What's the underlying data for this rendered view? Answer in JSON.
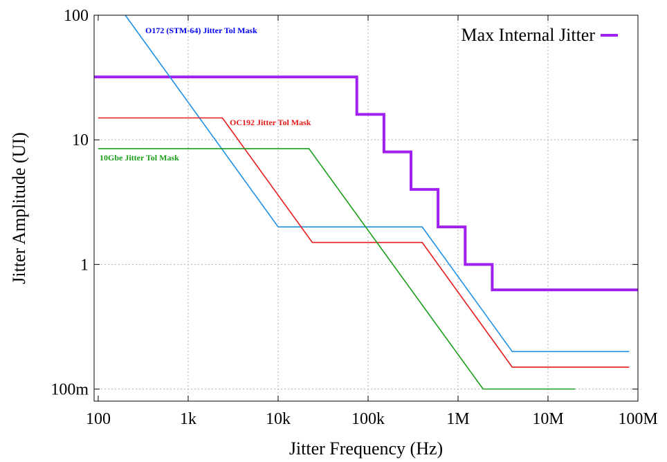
{
  "chart_data": {
    "type": "line",
    "xlabel": "Jitter Frequency (Hz)",
    "ylabel": "Jitter Amplitude (UI)",
    "xscale": "log",
    "yscale": "log",
    "xlim": [
      90,
      100000000
    ],
    "ylim": [
      0.08,
      100
    ],
    "grid": true,
    "legend_position": "top-right",
    "x_ticks": [
      {
        "value": 100,
        "label": "100"
      },
      {
        "value": 1000,
        "label": "1k"
      },
      {
        "value": 10000,
        "label": "10k"
      },
      {
        "value": 100000,
        "label": "100k"
      },
      {
        "value": 1000000,
        "label": "1M"
      },
      {
        "value": 10000000,
        "label": "10M"
      },
      {
        "value": 100000000,
        "label": "100M"
      }
    ],
    "y_ticks": [
      {
        "value": 0.1,
        "label": "100m"
      },
      {
        "value": 1,
        "label": "1"
      },
      {
        "value": 10,
        "label": "10"
      },
      {
        "value": 100,
        "label": "100"
      }
    ],
    "series": [
      {
        "name": "Max Internal Jitter",
        "color": "#a020f0",
        "in_legend": true,
        "x": [
          90,
          75000,
          75000,
          150000,
          150000,
          300000,
          300000,
          600000,
          600000,
          1200000,
          1200000,
          2400000,
          2400000,
          100000000
        ],
        "y": [
          32,
          32,
          16,
          16,
          8,
          8,
          4,
          4,
          2,
          2,
          1,
          1,
          0.625,
          0.625
        ]
      },
      {
        "name": "O172 (STM-64) Jitter Tol Mask",
        "color": "#1e90e6",
        "label_color": "#0000ee",
        "in_legend": false,
        "x": [
          200,
          10000,
          400000,
          4000000,
          80000000
        ],
        "y": [
          100,
          2,
          2,
          0.2,
          0.2
        ]
      },
      {
        "name": "OC192 Jitter Tol Mask",
        "color": "#e81818",
        "label_color": "#e81818",
        "in_legend": false,
        "x": [
          100,
          2400,
          24000,
          400000,
          4000000,
          80000000
        ],
        "y": [
          15,
          15,
          1.5,
          1.5,
          0.15,
          0.15
        ]
      },
      {
        "name": "10Gbe Jitter Tol Mask",
        "color": "#1a9e1a",
        "label_color": "#1a9e1a",
        "in_legend": false,
        "x": [
          100,
          22000,
          1900000,
          20000000
        ],
        "y": [
          8.5,
          8.5,
          0.1,
          0.1
        ]
      }
    ]
  }
}
